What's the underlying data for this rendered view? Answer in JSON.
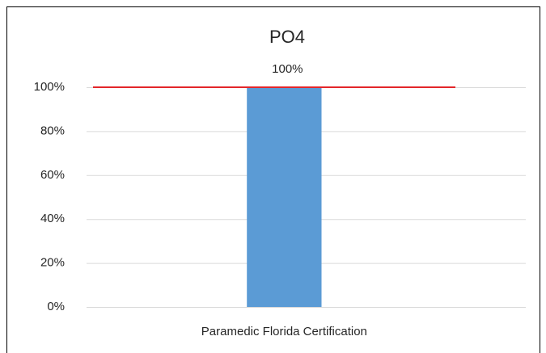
{
  "chart_data": {
    "type": "bar",
    "title": "PO4",
    "categories": [
      "Paramedic Florida Certification"
    ],
    "values": [
      100
    ],
    "value_labels": [
      "100%"
    ],
    "color": "#5b9bd5",
    "ylim": [
      0,
      100
    ],
    "yticks": [
      {
        "value": 0,
        "label": "0%"
      },
      {
        "value": 20,
        "label": "20%"
      },
      {
        "value": 40,
        "label": "40%"
      },
      {
        "value": 60,
        "label": "60%"
      },
      {
        "value": 80,
        "label": "80%"
      },
      {
        "value": 100,
        "label": "100%"
      }
    ],
    "grid": true,
    "reference_line": {
      "value": 100,
      "color": "#e3262a"
    }
  }
}
